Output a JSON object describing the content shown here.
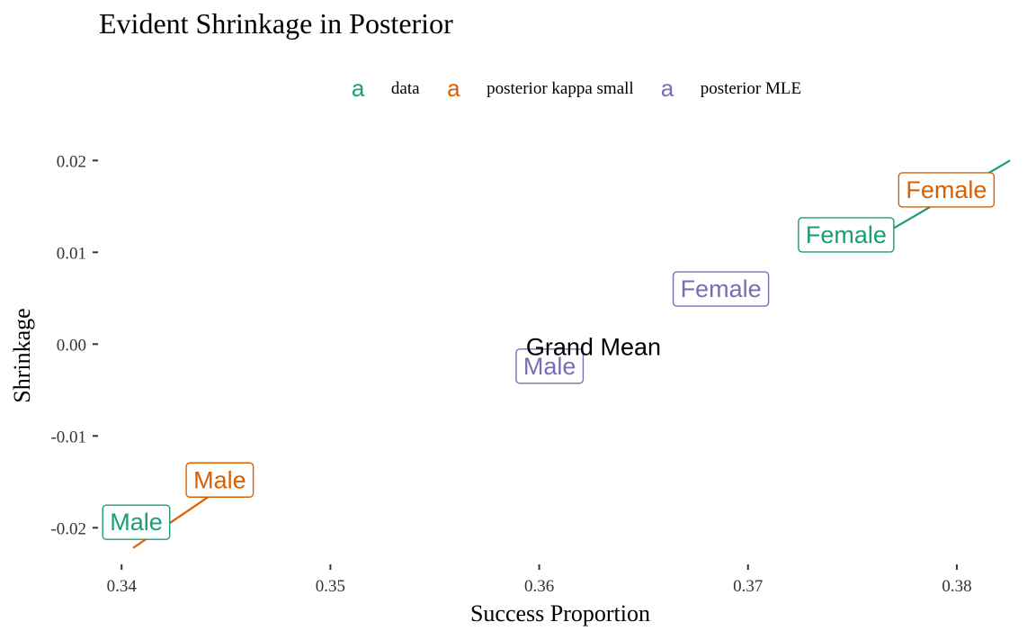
{
  "chart_data": {
    "type": "scatter",
    "title": "Evident Shrinkage in Posterior",
    "xlabel": "Success Proportion",
    "ylabel": "Shrinkage",
    "xlim": [
      0.339,
      0.3825
    ],
    "ylim": [
      -0.0235,
      0.0215
    ],
    "x_ticks": [
      0.34,
      0.35,
      0.36,
      0.37,
      0.38
    ],
    "x_tick_labels": [
      "0.34",
      "0.35",
      "0.36",
      "0.37",
      "0.38"
    ],
    "y_ticks": [
      0.02,
      0.01,
      0.0,
      -0.01,
      -0.02
    ],
    "y_tick_labels": [
      "0.02",
      "0.01",
      "0.00",
      "-0.01",
      "-0.02"
    ],
    "grid": false,
    "legend_position": "top",
    "legend_key_glyph": "a",
    "series": [
      {
        "name": "data",
        "color": "#1b9e77",
        "points": [
          {
            "label": "Male",
            "x": 0.3407,
            "y": -0.0194
          },
          {
            "label": "Female",
            "x": 0.3747,
            "y": 0.0119
          }
        ]
      },
      {
        "name": "posterior kappa small",
        "color": "#d95f02",
        "points": [
          {
            "label": "Male",
            "x": 0.3447,
            "y": -0.0148
          },
          {
            "label": "Female",
            "x": 0.3795,
            "y": 0.0168
          }
        ]
      },
      {
        "name": "posterior MLE",
        "color": "#7570b3",
        "points": [
          {
            "label": "Male",
            "x": 0.3605,
            "y": -0.0024
          },
          {
            "label": "Female",
            "x": 0.3687,
            "y": 0.006
          }
        ]
      }
    ],
    "segments": [
      {
        "series": "posterior kappa small",
        "x1": 0.34055,
        "y1": -0.0222,
        "x2": 0.3447,
        "y2": -0.0158
      },
      {
        "series": "data",
        "x1": 0.3765,
        "y1": 0.012,
        "x2": 0.38255,
        "y2": 0.02
      }
    ],
    "annotations": [
      {
        "text": "Grand Mean",
        "x": 0.3626,
        "y": -0.0002
      }
    ]
  }
}
